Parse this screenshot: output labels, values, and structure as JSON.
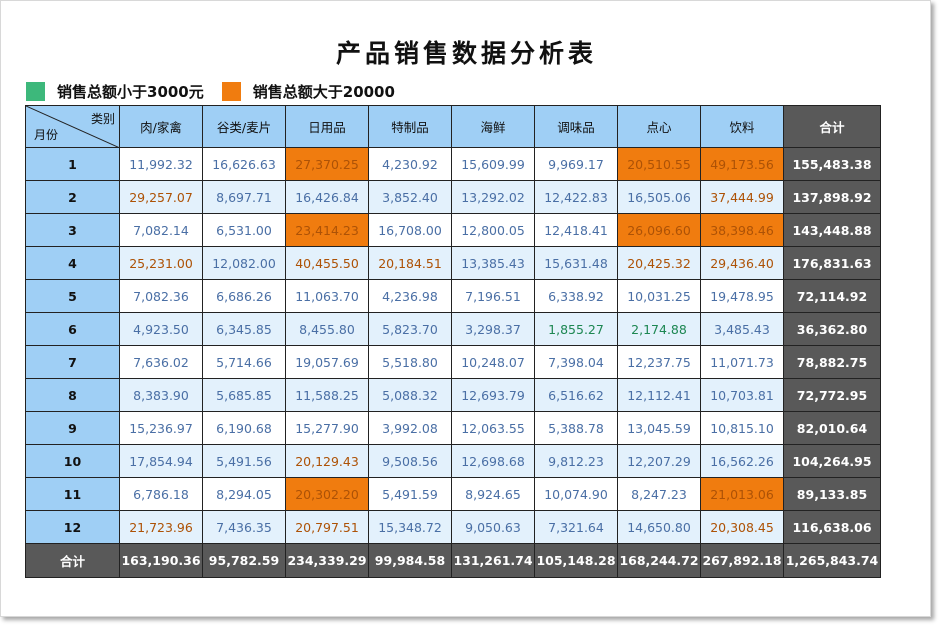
{
  "title": "产品销售数据分析表",
  "legend": {
    "low": {
      "label": "销售总额小于3000元",
      "color": "#3db87b"
    },
    "high": {
      "label": "销售总额大于20000",
      "color": "#f07c0f"
    }
  },
  "table": {
    "corner_category": "类别",
    "corner_month": "月份",
    "columns": [
      "肉/家禽",
      "谷类/麦片",
      "日用品",
      "特制品",
      "海鲜",
      "调味品",
      "点心",
      "饮料"
    ],
    "total_label": "合计",
    "rows": [
      {
        "month": "1",
        "values": [
          "11,992.32",
          "16,626.63",
          "27,370.25",
          "4,230.92",
          "15,609.99",
          "9,969.17",
          "20,510.55",
          "49,173.56"
        ],
        "total": "155,483.38"
      },
      {
        "month": "2",
        "values": [
          "29,257.07",
          "8,697.71",
          "16,426.84",
          "3,852.40",
          "13,292.02",
          "12,422.83",
          "16,505.06",
          "37,444.99"
        ],
        "total": "137,898.92"
      },
      {
        "month": "3",
        "values": [
          "7,082.14",
          "6,531.00",
          "23,414.23",
          "16,708.00",
          "12,800.05",
          "12,418.41",
          "26,096.60",
          "38,398.46"
        ],
        "total": "143,448.88"
      },
      {
        "month": "4",
        "values": [
          "25,231.00",
          "12,082.00",
          "40,455.50",
          "20,184.51",
          "13,385.43",
          "15,631.48",
          "20,425.32",
          "29,436.40"
        ],
        "total": "176,831.63"
      },
      {
        "month": "5",
        "values": [
          "7,082.36",
          "6,686.26",
          "11,063.70",
          "4,236.98",
          "7,196.51",
          "6,338.92",
          "10,031.25",
          "19,478.95"
        ],
        "total": "72,114.92"
      },
      {
        "month": "6",
        "values": [
          "4,923.50",
          "6,345.85",
          "8,455.80",
          "5,823.70",
          "3,298.37",
          "1,855.27",
          "2,174.88",
          "3,485.43"
        ],
        "total": "36,362.80"
      },
      {
        "month": "7",
        "values": [
          "7,636.02",
          "5,714.66",
          "19,057.69",
          "5,518.80",
          "10,248.07",
          "7,398.04",
          "12,237.75",
          "11,071.73"
        ],
        "total": "78,882.75"
      },
      {
        "month": "8",
        "values": [
          "8,383.90",
          "5,685.85",
          "11,588.25",
          "5,088.32",
          "12,693.79",
          "6,516.62",
          "12,112.41",
          "10,703.81"
        ],
        "total": "72,772.95"
      },
      {
        "month": "9",
        "values": [
          "15,236.97",
          "6,190.68",
          "15,277.90",
          "3,992.08",
          "12,063.55",
          "5,388.78",
          "13,045.59",
          "10,815.10"
        ],
        "total": "82,010.64"
      },
      {
        "month": "10",
        "values": [
          "17,854.94",
          "5,491.56",
          "20,129.43",
          "9,508.56",
          "12,698.68",
          "9,812.23",
          "12,207.29",
          "16,562.26"
        ],
        "total": "104,264.95"
      },
      {
        "month": "11",
        "values": [
          "6,786.18",
          "8,294.05",
          "20,302.20",
          "5,491.59",
          "8,924.65",
          "10,074.90",
          "8,247.23",
          "21,013.06"
        ],
        "total": "89,133.85"
      },
      {
        "month": "12",
        "values": [
          "21,723.96",
          "7,436.35",
          "20,797.51",
          "15,348.72",
          "9,050.63",
          "7,321.64",
          "14,650.80",
          "20,308.45"
        ],
        "total": "116,638.06"
      }
    ],
    "footer": {
      "label": "合计",
      "values": [
        "163,190.36",
        "95,782.59",
        "234,339.29",
        "99,984.58",
        "131,261.74",
        "105,148.28",
        "168,244.72",
        "267,892.18"
      ],
      "grand_total": "1,265,843.74"
    }
  }
}
